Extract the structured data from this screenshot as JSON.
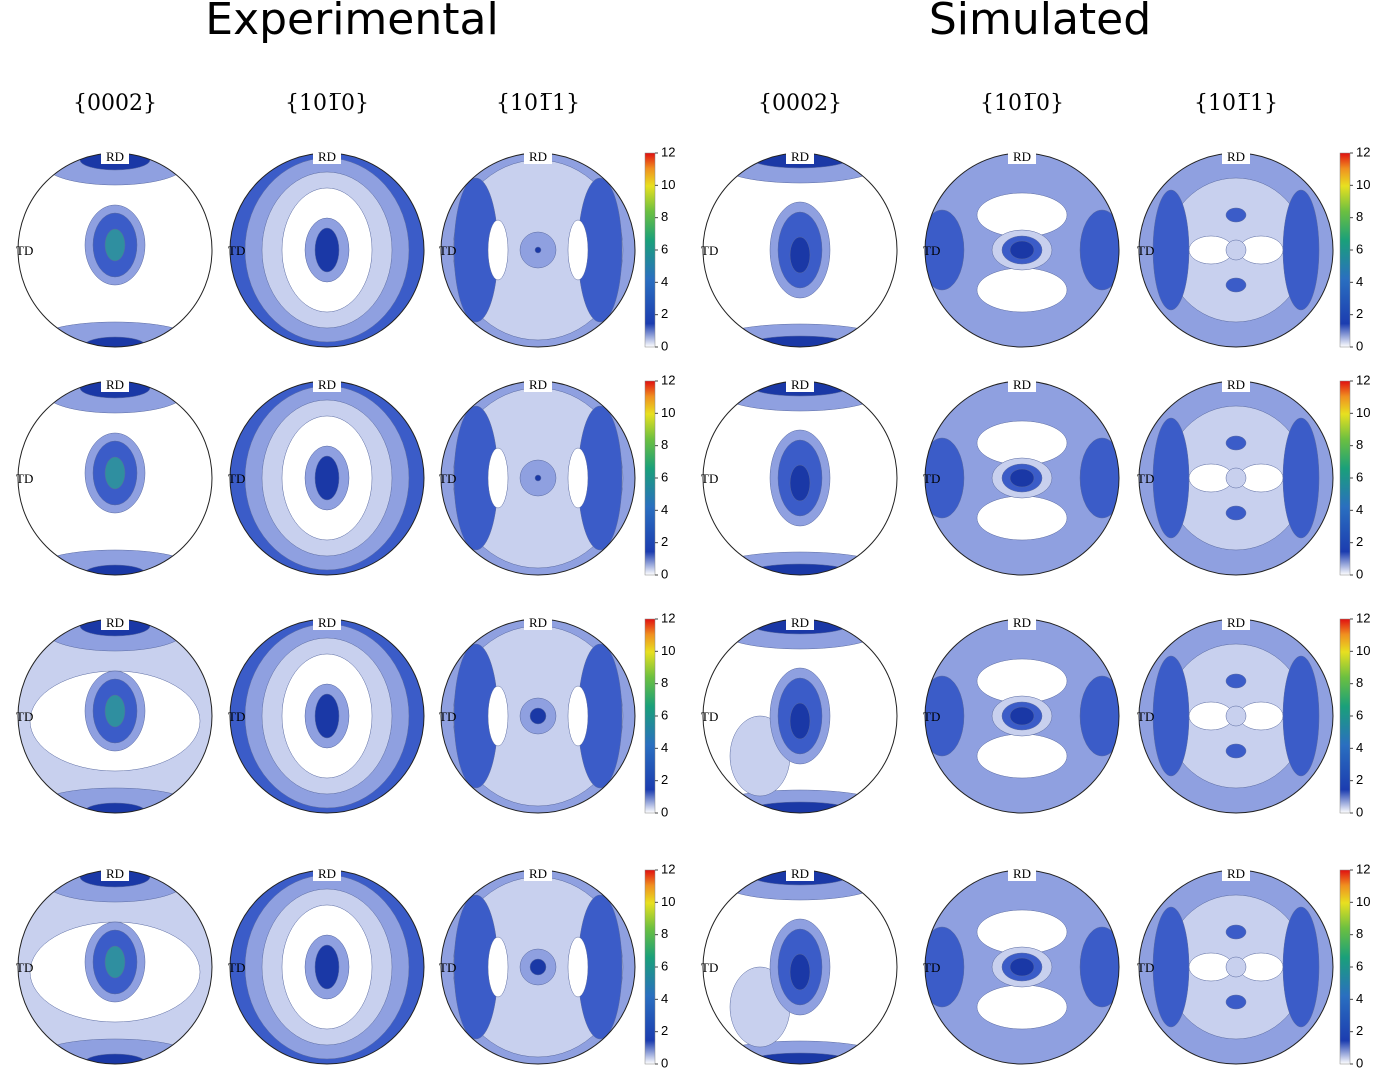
{
  "titles": [
    "Experimental",
    "Simulated"
  ],
  "columns": [
    "{0002}",
    "{101̅0}",
    "{101̅1}"
  ],
  "directions": {
    "rd": "RD",
    "td": "TD"
  },
  "colorbar": {
    "ticks": [
      0,
      2,
      4,
      6,
      8,
      10,
      12
    ]
  }
}
